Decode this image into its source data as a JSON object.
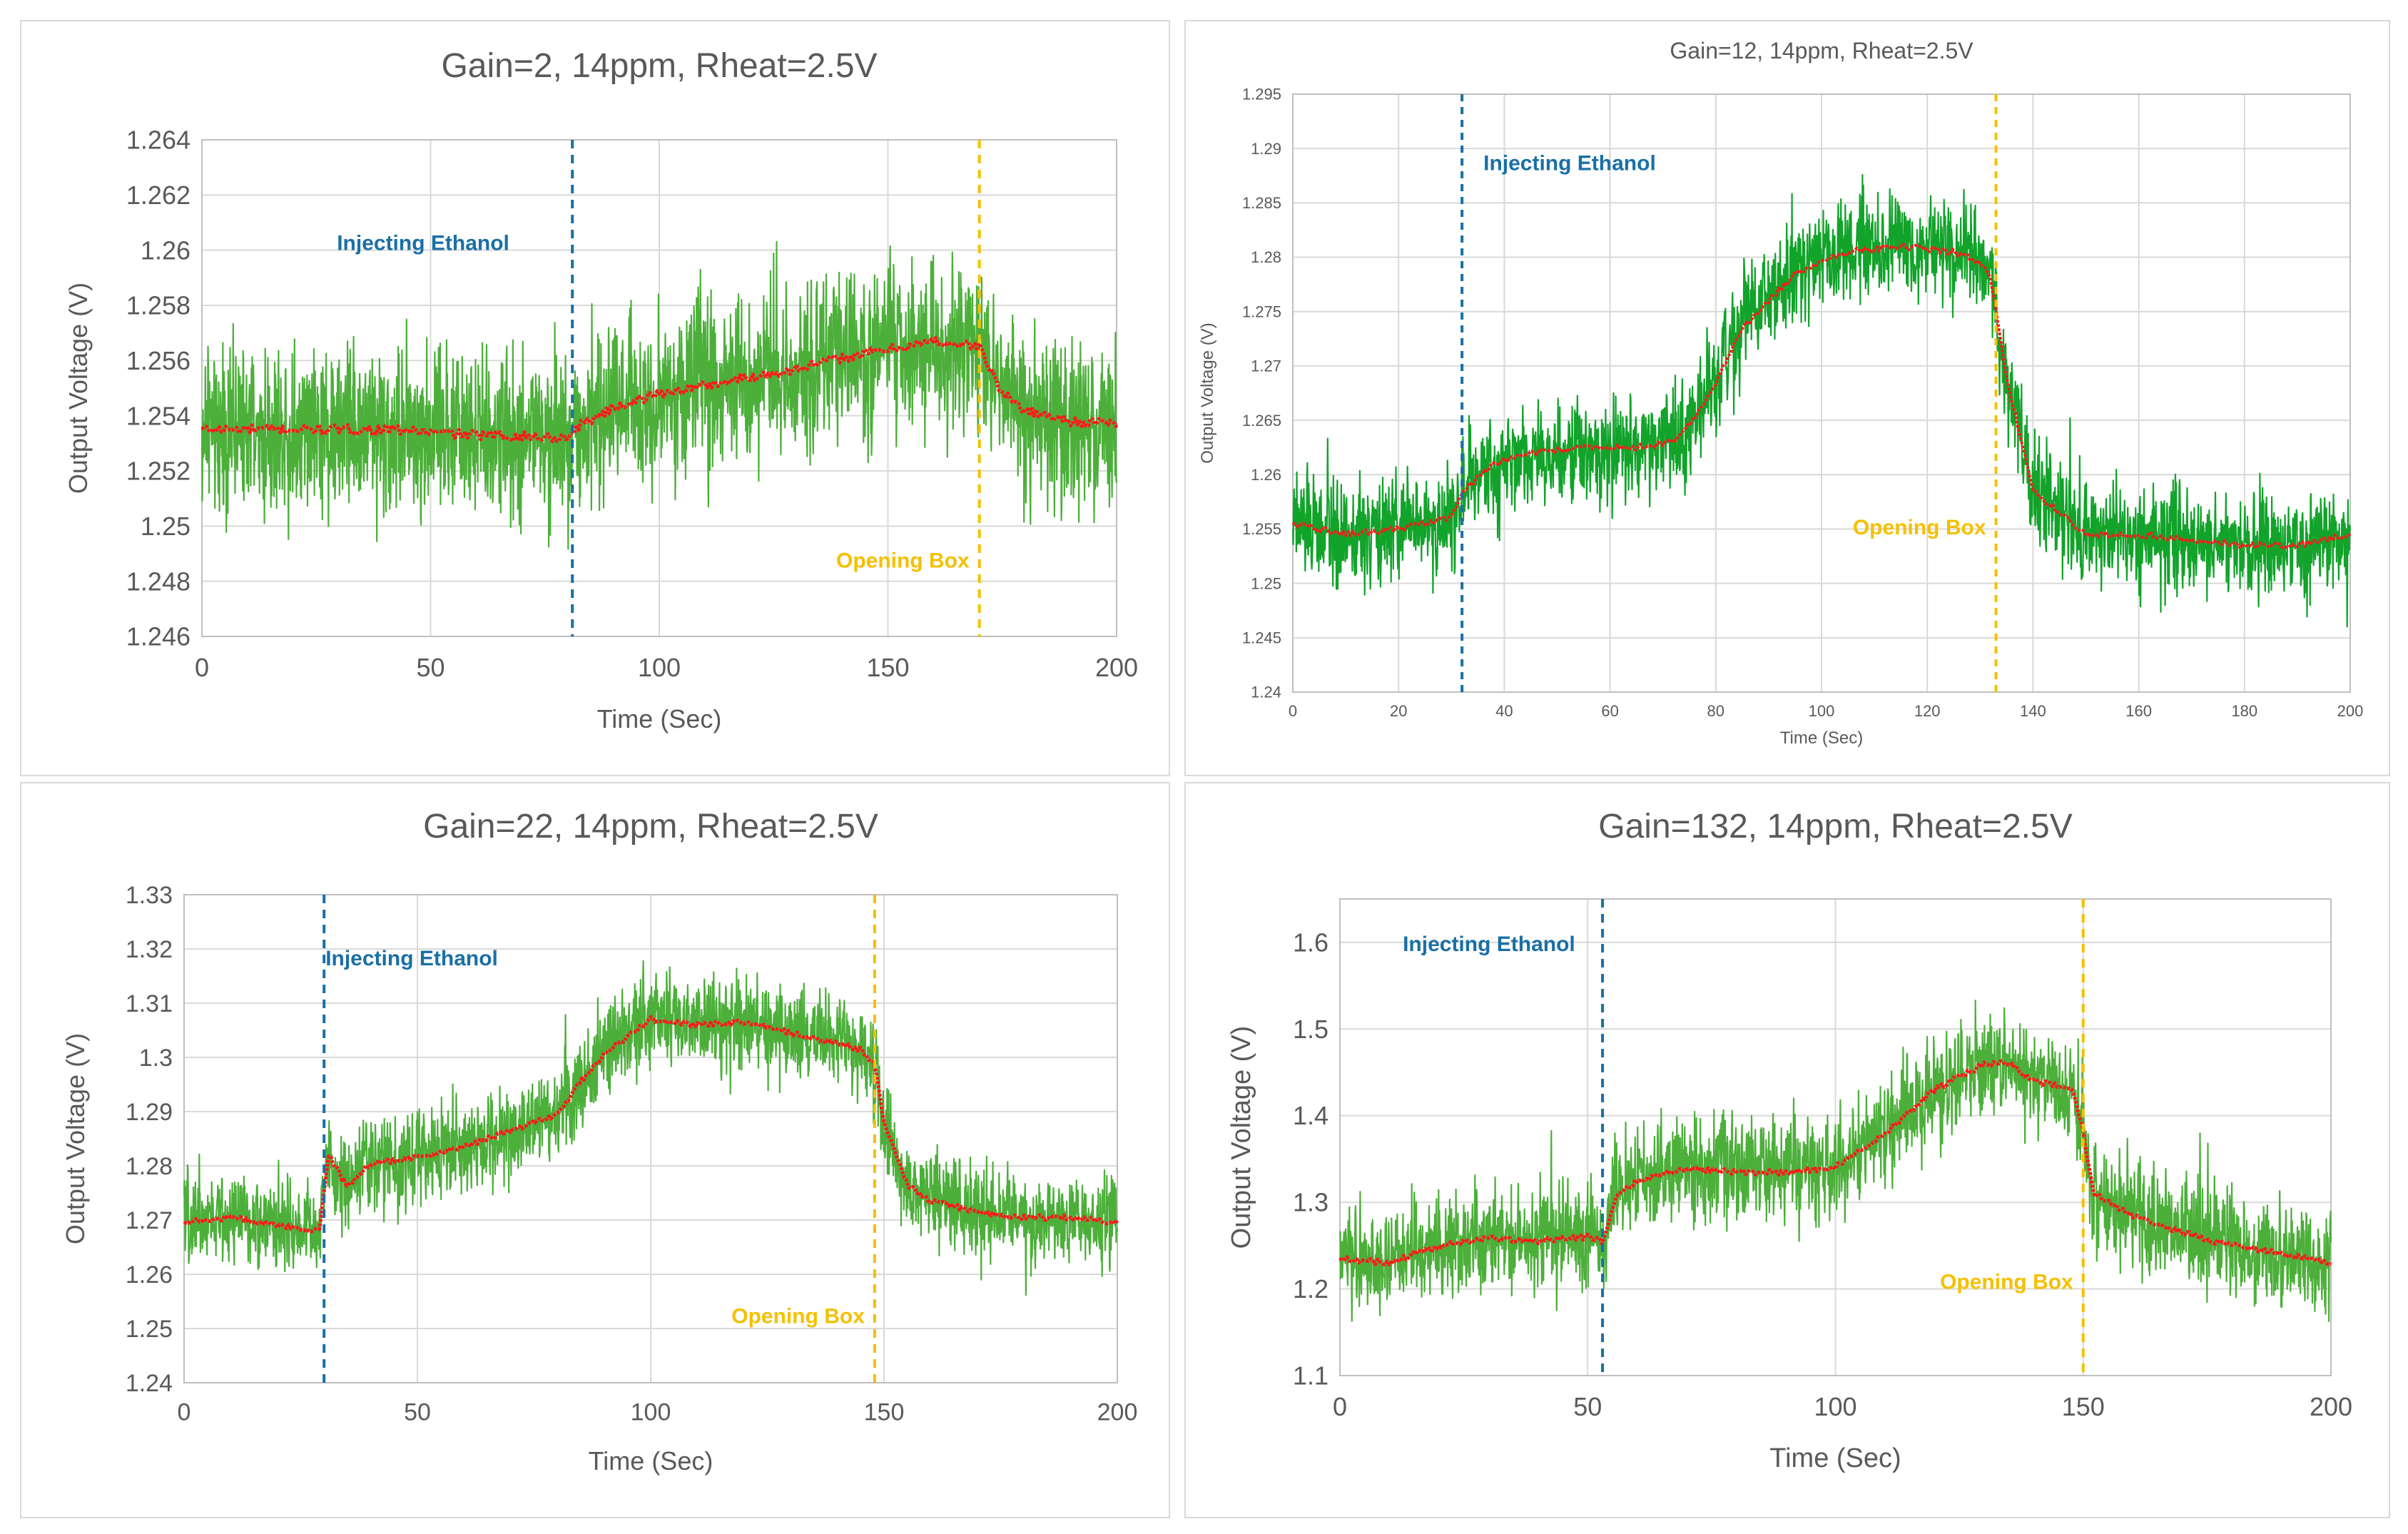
{
  "colors": {
    "noise": "#4caf3a",
    "noise_dark": "#11a32a",
    "avg": "#ff1a1a",
    "inject": "#1a6fa6",
    "open": "#f5c000",
    "grid": "#d9d9d9",
    "axis": "#bfbfbf",
    "text": "#595959"
  },
  "chart_data": [
    {
      "type": "line",
      "title": "Gain=2, 14ppm, Rheat=2.5V",
      "xlabel": "Time (Sec)",
      "ylabel": "Output Voltage (V)",
      "xlim": [
        0,
        200
      ],
      "ylim": [
        1.246,
        1.264
      ],
      "xticks": [
        "0",
        "50",
        "100",
        "150",
        "200"
      ],
      "yticks": [
        "1.246",
        "1.248",
        "1.25",
        "1.252",
        "1.254",
        "1.256",
        "1.258",
        "1.26",
        "1.262",
        "1.264"
      ],
      "grid": true,
      "noise_amplitude": 0.0028,
      "series": [
        {
          "name": "Raw output",
          "style": "noisy-band"
        },
        {
          "name": "Moving average",
          "x": [
            0,
            20,
            40,
            60,
            80,
            82,
            90,
            100,
            110,
            120,
            130,
            140,
            150,
            160,
            165,
            170,
            172,
            175,
            180,
            190,
            200
          ],
          "y": [
            1.2535,
            1.2535,
            1.2535,
            1.2533,
            1.2532,
            1.2536,
            1.2543,
            1.2548,
            1.2551,
            1.2554,
            1.2557,
            1.2561,
            1.2564,
            1.2567,
            1.2566,
            1.2565,
            1.2558,
            1.2548,
            1.2542,
            1.2538,
            1.2537
          ]
        }
      ],
      "annotations": [
        {
          "label": "Injecting Ethanol",
          "x": 81,
          "color": "inject",
          "label_y": 1.26
        },
        {
          "label": "Opening Box",
          "x": 170,
          "color": "open",
          "label_y": 1.2485
        }
      ]
    },
    {
      "type": "line",
      "title": "Gain=12, 14ppm, Rheat=2.5V",
      "xlabel": "Time (Sec)",
      "ylabel": "Output Voltage (V)",
      "xlim": [
        0,
        200
      ],
      "ylim": [
        1.24,
        1.295
      ],
      "xticks": [
        "0",
        "20",
        "40",
        "60",
        "80",
        "100",
        "120",
        "140",
        "160",
        "180",
        "200"
      ],
      "yticks": [
        "1.24",
        "1.245",
        "1.25",
        "1.255",
        "1.26",
        "1.265",
        "1.27",
        "1.275",
        "1.28",
        "1.285",
        "1.29",
        "1.295"
      ],
      "grid": true,
      "noise_amplitude": 0.0045,
      "series": [
        {
          "name": "Raw output",
          "style": "noisy-band"
        },
        {
          "name": "Moving average",
          "x": [
            0,
            10,
            20,
            30,
            32,
            38,
            45,
            55,
            65,
            72,
            78,
            85,
            95,
            105,
            115,
            125,
            130,
            132,
            135,
            140,
            150,
            160,
            170,
            180,
            190,
            200
          ],
          "y": [
            1.2555,
            1.2545,
            1.255,
            1.256,
            1.2585,
            1.261,
            1.262,
            1.2625,
            1.2625,
            1.263,
            1.2665,
            1.2735,
            1.2785,
            1.2805,
            1.281,
            1.2805,
            1.2795,
            1.278,
            1.269,
            1.2585,
            1.2545,
            1.2545,
            1.254,
            1.2535,
            1.2535,
            1.2545
          ]
        }
      ],
      "annotations": [
        {
          "label": "Injecting Ethanol",
          "x": 32,
          "color": "inject",
          "label_y": 1.288
        },
        {
          "label": "Opening Box",
          "x": 133,
          "color": "open",
          "label_y": 1.2545
        }
      ]
    },
    {
      "type": "line",
      "title": "Gain=22, 14ppm, Rheat=2.5V",
      "xlabel": "Time (Sec)",
      "ylabel": "Output Voltage (V)",
      "xlim": [
        0,
        200
      ],
      "ylim": [
        1.24,
        1.33
      ],
      "xticks": [
        "0",
        "50",
        "100",
        "150",
        "200"
      ],
      "yticks": [
        "1.24",
        "1.25",
        "1.26",
        "1.27",
        "1.28",
        "1.29",
        "1.3",
        "1.31",
        "1.32",
        "1.33"
      ],
      "grid": true,
      "noise_amplitude": 0.008,
      "series": [
        {
          "name": "Raw output",
          "style": "noisy-band"
        },
        {
          "name": "Moving average",
          "x": [
            0,
            10,
            20,
            29,
            31,
            35,
            40,
            50,
            60,
            70,
            80,
            85,
            90,
            100,
            110,
            120,
            130,
            140,
            145,
            148,
            150,
            155,
            160,
            170,
            180,
            190,
            200
          ],
          "y": [
            1.2695,
            1.2705,
            1.269,
            1.268,
            1.282,
            1.276,
            1.2805,
            1.2815,
            1.2835,
            1.2865,
            1.2895,
            1.2955,
            1.3005,
            1.307,
            1.306,
            1.3065,
            1.3045,
            1.3025,
            1.3015,
            1.2985,
            1.288,
            1.2765,
            1.2735,
            1.2715,
            1.2705,
            1.2705,
            1.2695
          ]
        }
      ],
      "annotations": [
        {
          "label": "Injecting Ethanol",
          "x": 30,
          "color": "inject",
          "label_y": 1.317
        },
        {
          "label": "Opening Box",
          "x": 148,
          "color": "open",
          "label_y": 1.251
        }
      ]
    },
    {
      "type": "line",
      "title": "Gain=132, 14ppm, Rheat=2.5V",
      "xlabel": "Time (Sec)",
      "ylabel": "Output Voltage (V)",
      "xlim": [
        0,
        200
      ],
      "ylim": [
        1.1,
        1.65
      ],
      "xticks": [
        "0",
        "50",
        "100",
        "150",
        "200"
      ],
      "yticks": [
        "1.1",
        "1.2",
        "1.3",
        "1.4",
        "1.5",
        "1.6"
      ],
      "grid": true,
      "noise_amplitude": 0.055,
      "series": [
        {
          "name": "Raw output",
          "style": "noisy-band"
        },
        {
          "name": "Moving average",
          "x": [
            0,
            10,
            20,
            30,
            40,
            50,
            53,
            56,
            60,
            70,
            80,
            90,
            100,
            110,
            120,
            130,
            135,
            140,
            148,
            150,
            152,
            160,
            170,
            180,
            190,
            200
          ],
          "y": [
            1.235,
            1.23,
            1.25,
            1.258,
            1.255,
            1.26,
            1.255,
            1.31,
            1.325,
            1.34,
            1.335,
            1.335,
            1.34,
            1.38,
            1.43,
            1.46,
            1.46,
            1.44,
            1.43,
            1.38,
            1.31,
            1.285,
            1.265,
            1.25,
            1.24,
            1.23
          ]
        }
      ],
      "annotations": [
        {
          "label": "Injecting Ethanol",
          "x": 53,
          "color": "inject",
          "label_y": 1.59
        },
        {
          "label": "Opening Box",
          "x": 150,
          "color": "open",
          "label_y": 1.2
        }
      ]
    }
  ]
}
